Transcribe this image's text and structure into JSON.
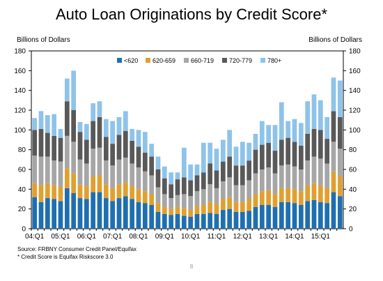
{
  "title": "Auto Loan Originations by Credit Score*",
  "unit_left": "Billions of Dollars",
  "unit_right": "Billions of Dollars",
  "source": "Source: FRBNY Consumer Credit Panel/Equifax",
  "footnote": "* Credit Score is Equifax Riskscore 3.0",
  "page_number": "8",
  "chart_data": {
    "type": "bar",
    "stacked": true,
    "ylim": [
      0,
      180
    ],
    "yticks": [
      0,
      20,
      40,
      60,
      80,
      100,
      120,
      140,
      160,
      180
    ],
    "xtick_labels": [
      "04:Q1",
      "05:Q1",
      "06:Q1",
      "07:Q1",
      "08:Q1",
      "09:Q1",
      "10:Q1",
      "11:Q1",
      "12:Q1",
      "13:Q1",
      "14:Q1",
      "15:Q1"
    ],
    "grid": false,
    "legend_position": "top",
    "colors": [
      "#1f6fb0",
      "#e0a030",
      "#a6a6a6",
      "#595959",
      "#8ec3ea"
    ],
    "categories": [
      "04:Q1",
      "04:Q2",
      "04:Q3",
      "04:Q4",
      "05:Q1",
      "05:Q2",
      "05:Q3",
      "05:Q4",
      "06:Q1",
      "06:Q2",
      "06:Q3",
      "06:Q4",
      "07:Q1",
      "07:Q2",
      "07:Q3",
      "07:Q4",
      "08:Q1",
      "08:Q2",
      "08:Q3",
      "08:Q4",
      "09:Q1",
      "09:Q2",
      "09:Q3",
      "09:Q4",
      "10:Q1",
      "10:Q2",
      "10:Q3",
      "10:Q4",
      "11:Q1",
      "11:Q2",
      "11:Q3",
      "11:Q4",
      "12:Q1",
      "12:Q2",
      "12:Q3",
      "12:Q4",
      "13:Q1",
      "13:Q2",
      "13:Q3",
      "13:Q4",
      "14:Q1",
      "14:Q2",
      "14:Q3",
      "14:Q4",
      "15:Q1",
      "15:Q2",
      "15:Q3",
      "15:Q4"
    ],
    "series": [
      {
        "name": "<620",
        "values": [
          32,
          27,
          31,
          30,
          28,
          41,
          36,
          31,
          30,
          37,
          37,
          31,
          28,
          31,
          33,
          30,
          27,
          26,
          24,
          17,
          15,
          14,
          15,
          13,
          12,
          15,
          15,
          16,
          15,
          19,
          20,
          17,
          17,
          18,
          22,
          24,
          24,
          22,
          27,
          27,
          26,
          24,
          28,
          29,
          27,
          26,
          37,
          33
        ]
      },
      {
        "name": "620-659",
        "values": [
          14,
          17,
          15,
          14,
          14,
          20,
          20,
          14,
          13,
          16,
          17,
          14,
          13,
          14,
          14,
          13,
          13,
          12,
          11,
          9,
          7,
          6,
          7,
          8,
          7,
          8,
          9,
          11,
          10,
          11,
          12,
          10,
          10,
          12,
          13,
          14,
          15,
          13,
          14,
          14,
          14,
          14,
          16,
          17,
          17,
          15,
          21,
          20
        ]
      },
      {
        "name": "660-719",
        "values": [
          28,
          29,
          27,
          25,
          26,
          33,
          32,
          25,
          23,
          28,
          28,
          24,
          23,
          25,
          25,
          23,
          22,
          20,
          19,
          16,
          13,
          11,
          12,
          14,
          14,
          15,
          16,
          18,
          16,
          18,
          20,
          17,
          17,
          19,
          21,
          22,
          23,
          21,
          23,
          24,
          23,
          22,
          25,
          27,
          27,
          25,
          30,
          28
        ]
      },
      {
        "name": "720-779",
        "values": [
          26,
          28,
          24,
          25,
          24,
          35,
          32,
          28,
          24,
          28,
          31,
          24,
          22,
          25,
          27,
          23,
          21,
          19,
          19,
          18,
          16,
          14,
          16,
          17,
          16,
          16,
          17,
          21,
          18,
          20,
          21,
          20,
          20,
          20,
          24,
          25,
          25,
          23,
          26,
          27,
          25,
          24,
          27,
          28,
          29,
          25,
          31,
          32
        ]
      },
      {
        "name": "780+",
        "values": [
          12,
          18,
          18,
          22,
          9,
          23,
          40,
          10,
          16,
          18,
          16,
          18,
          23,
          18,
          20,
          12,
          17,
          21,
          13,
          13,
          12,
          12,
          7,
          30,
          16,
          11,
          30,
          21,
          22,
          22,
          27,
          19,
          24,
          18,
          16,
          24,
          18,
          26,
          38,
          17,
          23,
          23,
          33,
          35,
          30,
          22,
          34,
          37
        ]
      }
    ]
  }
}
